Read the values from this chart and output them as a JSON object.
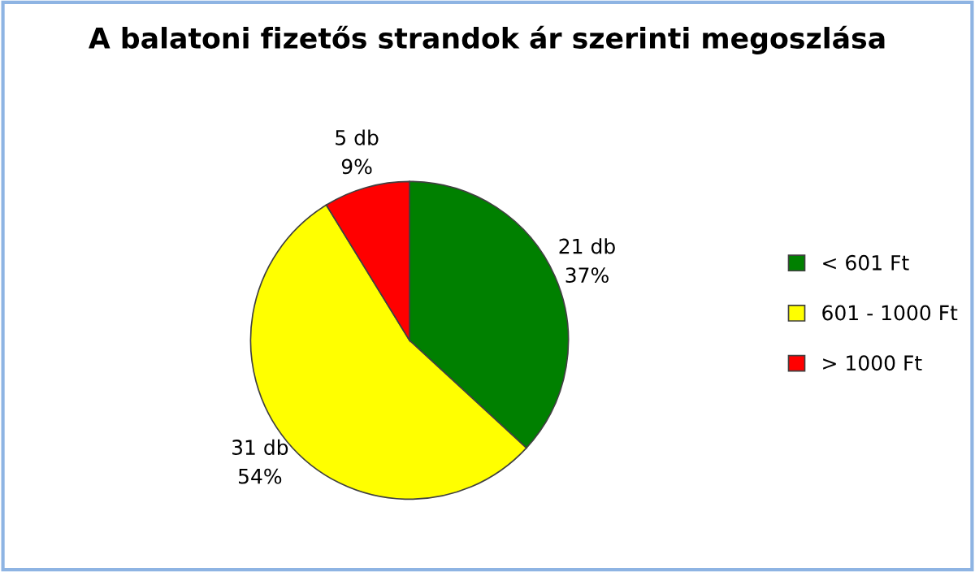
{
  "chart_data": {
    "type": "pie",
    "title": "A balatoni fizetős strandok ár szerinti megoszlása",
    "categories": [
      "< 601 Ft",
      "601 - 1000 Ft",
      "> 1000 Ft"
    ],
    "values": [
      21,
      31,
      5
    ],
    "colors": [
      "#008000",
      "#ffff00",
      "#ff0000"
    ],
    "value_labels": [
      "21 db\n37%",
      "31 db\n54%",
      "5 db\n9%"
    ],
    "legend": "right"
  }
}
